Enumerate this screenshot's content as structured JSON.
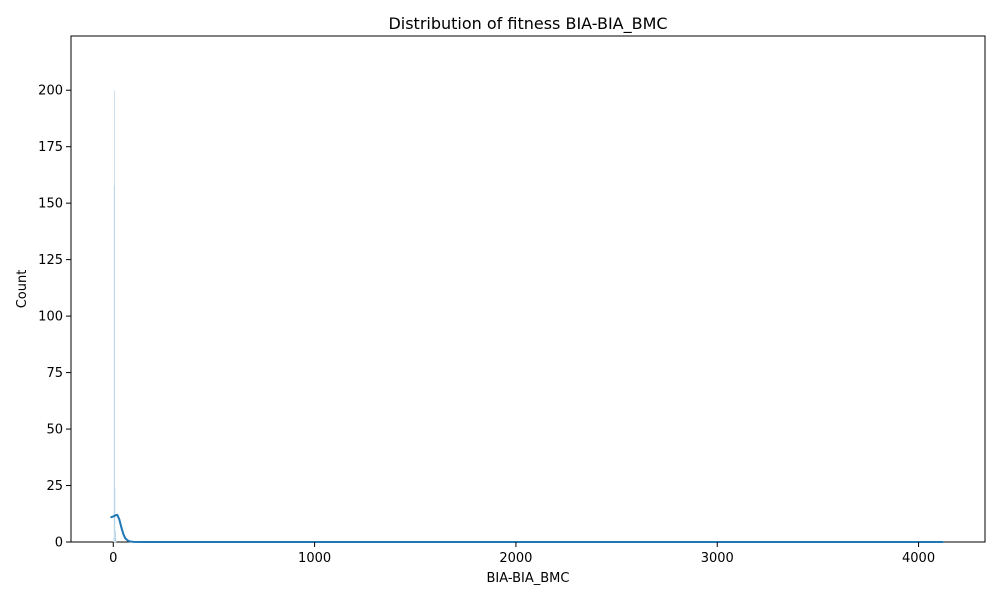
{
  "chart_data": {
    "type": "histogram",
    "title": "Distribution of fitness BIA-BIA_BMC",
    "xlabel": "BIA-BIA_BMC",
    "ylabel": "Count",
    "xlim": [
      -210,
      4330
    ],
    "ylim": [
      0,
      224
    ],
    "x_ticks": [
      0,
      1000,
      2000,
      3000,
      4000
    ],
    "y_ticks": [
      0,
      25,
      50,
      75,
      100,
      125,
      150,
      175,
      200
    ],
    "grid": false,
    "bar_color": "#1f77b4",
    "kde_color": "#1f77b4",
    "bin_width": 4.12,
    "bins": [
      {
        "x": 0.0,
        "count": 2
      },
      {
        "x": 2.06,
        "count": 158
      },
      {
        "x": 4.12,
        "count": 200
      },
      {
        "x": 6.18,
        "count": 24
      },
      {
        "x": 8.24,
        "count": 5
      },
      {
        "x": 10.3,
        "count": 2
      }
    ],
    "kde": {
      "x": [
        -10,
        0,
        10,
        20,
        30,
        40,
        50,
        60,
        70,
        80,
        100,
        150,
        300,
        1000,
        2000,
        3000,
        4120
      ],
      "y": [
        11,
        11.3,
        11.8,
        12,
        10,
        6.5,
        3.5,
        1.6,
        0.8,
        0.3,
        0.05,
        0,
        0,
        0,
        0,
        0,
        0
      ]
    }
  }
}
